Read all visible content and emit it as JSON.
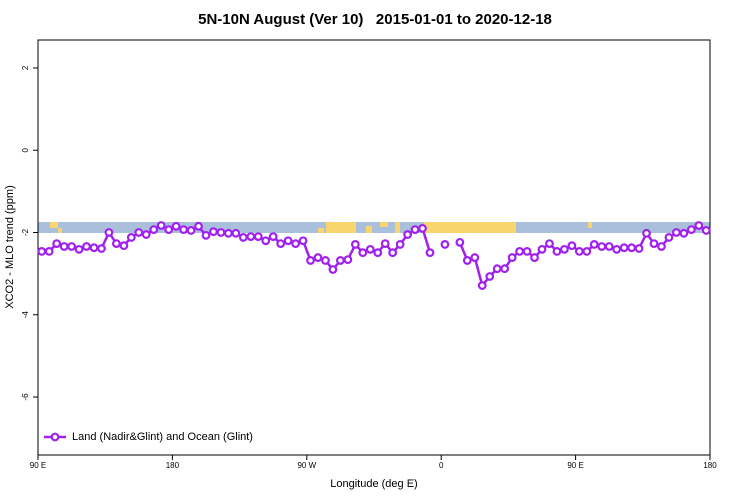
{
  "chart_data": {
    "type": "line",
    "title": "5N-10N August (Ver 10)   2015-01-01 to 2020-12-18",
    "x_label": "Longitude (deg E)",
    "y_label": "XCO2 - MLO trend (ppm)",
    "xlim": [
      90,
      540
    ],
    "xticks": [
      {
        "value": 90,
        "label": "90 E"
      },
      180,
      {
        "value": 270,
        "label": "90 W"
      },
      {
        "value": 360,
        "label": "0"
      },
      {
        "value": 450,
        "label": "90 E"
      },
      {
        "value": 540,
        "label": "180"
      }
    ],
    "ylim": [
      -7.41,
      2.68
    ],
    "yticks": [
      2,
      0,
      -2,
      -4,
      -6
    ],
    "grid": false,
    "legend": "bottomleft",
    "x": [
      92.5,
      97.5,
      102.5,
      107.5,
      112.5,
      117.5,
      122.5,
      127.5,
      132.5,
      137.5,
      142.5,
      147.5,
      152.5,
      157.5,
      162.5,
      167.5,
      172.5,
      177.5,
      182.5,
      187.5,
      192.5,
      197.5,
      202.5,
      207.5,
      212.5,
      217.5,
      222.5,
      227.5,
      232.5,
      237.5,
      242.5,
      247.5,
      252.5,
      257.5,
      262.5,
      267.5,
      272.5,
      277.5,
      282.5,
      287.5,
      292.5,
      297.5,
      302.5,
      307.5,
      312.5,
      317.5,
      322.5,
      327.5,
      332.5,
      337.5,
      342.5,
      347.5,
      352.5,
      357.5,
      362.5,
      367.5,
      372.5,
      377.5,
      382.5,
      387.5,
      392.5,
      397.5,
      402.5,
      407.5,
      412.5,
      417.5,
      422.5,
      427.5,
      432.5,
      437.5,
      442.5,
      447.5,
      452.5,
      457.5,
      462.5,
      467.5,
      472.5,
      477.5,
      482.5,
      487.5,
      492.5,
      497.5,
      502.5,
      507.5,
      512.5,
      517.5,
      522.5,
      527.5,
      532.5,
      537.5
    ],
    "series": [
      {
        "name": "Land (Nadir&Glint) and Ocean (Glint)",
        "color": "#a020f0",
        "values": [
          -2.46,
          -2.46,
          -2.27,
          -2.34,
          -2.34,
          -2.41,
          -2.34,
          -2.37,
          -2.39,
          -2.0,
          -2.27,
          -2.32,
          -2.12,
          -2.0,
          -2.05,
          -1.93,
          -1.83,
          -1.93,
          -1.85,
          -1.93,
          -1.95,
          -1.85,
          -2.07,
          -1.98,
          -2.0,
          -2.02,
          -2.02,
          -2.12,
          -2.1,
          -2.1,
          -2.2,
          -2.1,
          -2.27,
          -2.2,
          -2.27,
          -2.2,
          -2.68,
          -2.61,
          -2.68,
          -2.9,
          -2.68,
          -2.66,
          -2.29,
          -2.49,
          -2.41,
          -2.49,
          -2.27,
          -2.49,
          -2.29,
          -2.05,
          -1.93,
          -1.9,
          -2.49,
          null,
          -2.29,
          null,
          -2.24,
          -2.68,
          -2.61,
          -3.29,
          -3.07,
          -2.88,
          -2.88,
          -2.61,
          -2.46,
          -2.46,
          -2.61,
          -2.41,
          -2.27,
          -2.46,
          -2.41,
          -2.32,
          -2.46,
          -2.46,
          -2.29,
          -2.34,
          -2.34,
          -2.41,
          -2.37,
          -2.37,
          -2.39,
          -2.02,
          -2.27,
          -2.34,
          -2.12,
          -2.0,
          -2.02,
          -1.93,
          -1.83,
          -1.95
        ]
      }
    ]
  }
}
